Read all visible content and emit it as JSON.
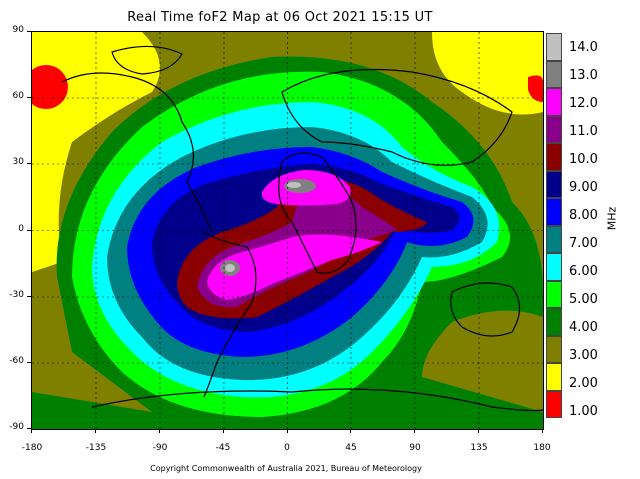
{
  "title": "Real Time foF2 Map at 06 Oct 2021 15:15 UT",
  "copyright": "Copyright Commonwealth of Australia 2021, Bureau of Meteorology",
  "map": {
    "x_ticks": [
      "-180",
      "-135",
      "-90",
      "-45",
      "0",
      "45",
      "90",
      "135",
      "180"
    ],
    "y_ticks": [
      "90",
      "60",
      "30",
      "0",
      "-30",
      "-60",
      "-90"
    ],
    "x_range": [
      -180,
      180
    ],
    "y_range": [
      -90,
      90
    ]
  },
  "legend": {
    "unit": "MHz",
    "levels": [
      {
        "label": "14.0",
        "color": "#c0c0c0"
      },
      {
        "label": "13.0",
        "color": "#808080"
      },
      {
        "label": "12.0",
        "color": "#ff00ff"
      },
      {
        "label": "11.0",
        "color": "#8b008b"
      },
      {
        "label": "10.0",
        "color": "#8b0000"
      },
      {
        "label": "9.00",
        "color": "#00008b"
      },
      {
        "label": "8.00",
        "color": "#0000ff"
      },
      {
        "label": "7.00",
        "color": "#008080"
      },
      {
        "label": "6.00",
        "color": "#00ffff"
      },
      {
        "label": "5.00",
        "color": "#00ff00"
      },
      {
        "label": "4.00",
        "color": "#008000"
      },
      {
        "label": "3.00",
        "color": "#808000"
      },
      {
        "label": "2.00",
        "color": "#ffff00"
      },
      {
        "label": "1.00",
        "color": "#ff0000"
      }
    ]
  }
}
